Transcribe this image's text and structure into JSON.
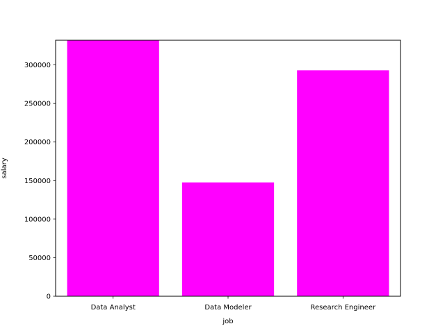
{
  "chart_data": {
    "type": "bar",
    "title": "",
    "xlabel": "job",
    "ylabel": "salary",
    "categories": [
      "Data Analyst",
      "Data Modeler",
      "Research Engineer"
    ],
    "values": [
      332000,
      147500,
      293000
    ],
    "ylim": [
      0,
      332000
    ],
    "yticks": [
      0,
      50000,
      100000,
      150000,
      200000,
      250000,
      300000
    ],
    "ytick_labels": [
      "0",
      "50000",
      "100000",
      "150000",
      "200000",
      "250000",
      "300000"
    ],
    "bar_color": "#ff00ff",
    "grid": false
  }
}
